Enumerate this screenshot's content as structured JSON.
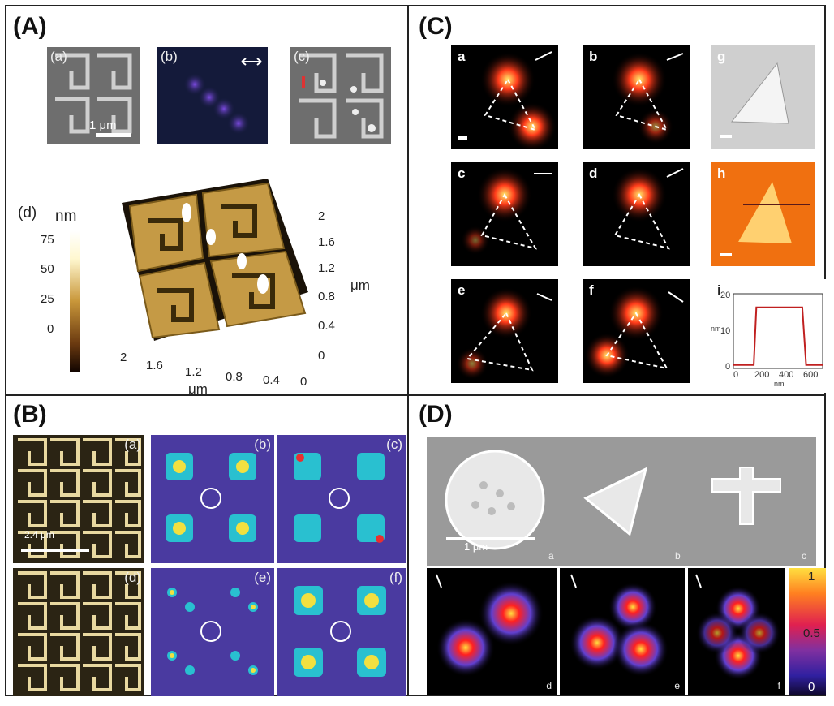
{
  "panels": {
    "A": {
      "label": "(A)",
      "sub": [
        "(a)",
        "(b)",
        "(c)",
        "(d)"
      ],
      "scalebar": "1 μm",
      "colorbar_unit": "nm",
      "colorbar_ticks": [
        "75",
        "50",
        "25",
        "0"
      ],
      "z_ticks": [
        "2",
        "1.6",
        "1.2",
        "0.8",
        "0.4",
        "0"
      ],
      "z_unit": "μm",
      "x_ticks": [
        "2",
        "1.6",
        "1.2",
        "0.8",
        "0.4",
        "0"
      ],
      "x_unit": "μm"
    },
    "B": {
      "label": "(B)",
      "sub": [
        "(a)",
        "(b)",
        "(c)",
        "(d)",
        "(e)",
        "(f)"
      ],
      "scalebar": "2.4 μm"
    },
    "C": {
      "label": "(C)",
      "sub": [
        "a",
        "b",
        "c",
        "d",
        "e",
        "f",
        "g",
        "h",
        "i"
      ],
      "profile_ylabel": "nm",
      "profile_xlabel": "nm",
      "profile_yticks": [
        "20",
        "10",
        "0"
      ],
      "profile_xticks": [
        "0",
        "200",
        "400",
        "600"
      ]
    },
    "D": {
      "label": "(D)",
      "sub": [
        "a",
        "b",
        "c",
        "d",
        "e",
        "f"
      ],
      "scalebar": "1 μm",
      "colorbar_ticks": [
        "1",
        "0.5",
        "0"
      ]
    }
  },
  "colors": {
    "gold": "#c9973a",
    "hot": "#ff3b1a",
    "violet": "#3a1a8a"
  }
}
